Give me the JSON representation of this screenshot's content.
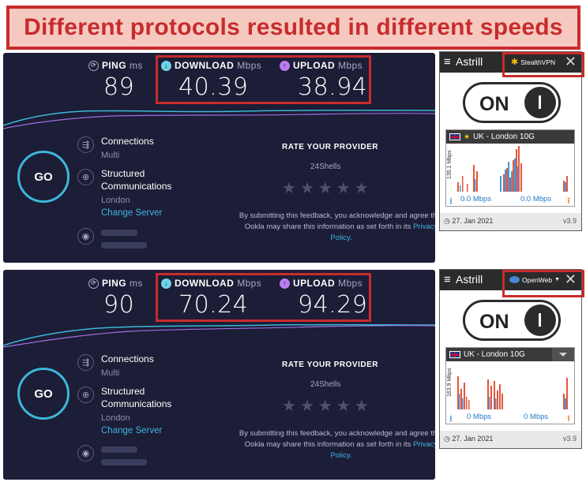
{
  "banner": {
    "title": "Different protocols resulted in different speeds"
  },
  "tests": [
    {
      "ping_label": "PING",
      "ping_unit": "ms",
      "ping_value": "89",
      "download_label": "DOWNLOAD",
      "download_unit": "Mbps",
      "download_value": "40.39",
      "upload_label": "UPLOAD",
      "upload_unit": "Mbps",
      "upload_value": "38.94",
      "go_label": "GO",
      "connections_label": "Connections",
      "connections_value": "Multi",
      "host_line1": "Structured",
      "host_line2": "Communications",
      "host_location": "London",
      "change_server": "Change Server",
      "rate_title": "RATE YOUR PROVIDER",
      "provider_name": "24Shells",
      "disclaimer": "By submitting this feedback, you acknowledge and agree that Ookla may share this information as set forth in its",
      "privacy_policy": "Privacy Policy."
    },
    {
      "ping_label": "PING",
      "ping_unit": "ms",
      "ping_value": "90",
      "download_label": "DOWNLOAD",
      "download_unit": "Mbps",
      "download_value": "70.24",
      "upload_label": "UPLOAD",
      "upload_unit": "Mbps",
      "upload_value": "94.29",
      "go_label": "GO",
      "connections_label": "Connections",
      "connections_value": "Multi",
      "host_line1": "Structured",
      "host_line2": "Communications",
      "host_location": "London",
      "change_server": "Change Server",
      "rate_title": "RATE YOUR PROVIDER",
      "provider_name": "24Shells",
      "disclaimer": "By submitting this feedback, you acknowledge and agree that Ookla may share this information as set forth in its",
      "privacy_policy": "Privacy Policy."
    }
  ],
  "astrill": [
    {
      "brand": "Astrill",
      "protocol": "StealthVPN",
      "toggle_label": "ON",
      "server": "UK - London 10G",
      "y_axis": "135.1 Mbps",
      "download_speed": "0.0 Mbps",
      "upload_speed": "0.0 Mbps",
      "date": "27. Jan 2021",
      "version": "v3.9"
    },
    {
      "brand": "Astrill",
      "protocol": "OpenWeb",
      "toggle_label": "ON",
      "server": "UK - London 10G",
      "y_axis": "163.9 Mbps",
      "download_speed": "0 Mbps",
      "upload_speed": "0 Mbps",
      "date": "27. Jan 2021",
      "version": "v3.9"
    }
  ],
  "colors": {
    "accent_red": "#c72c2c",
    "speedtest_bg": "#1c1d36",
    "download_cyan": "#6fd3e8",
    "upload_purple": "#b87cf0",
    "link_blue": "#3fb3e6"
  }
}
